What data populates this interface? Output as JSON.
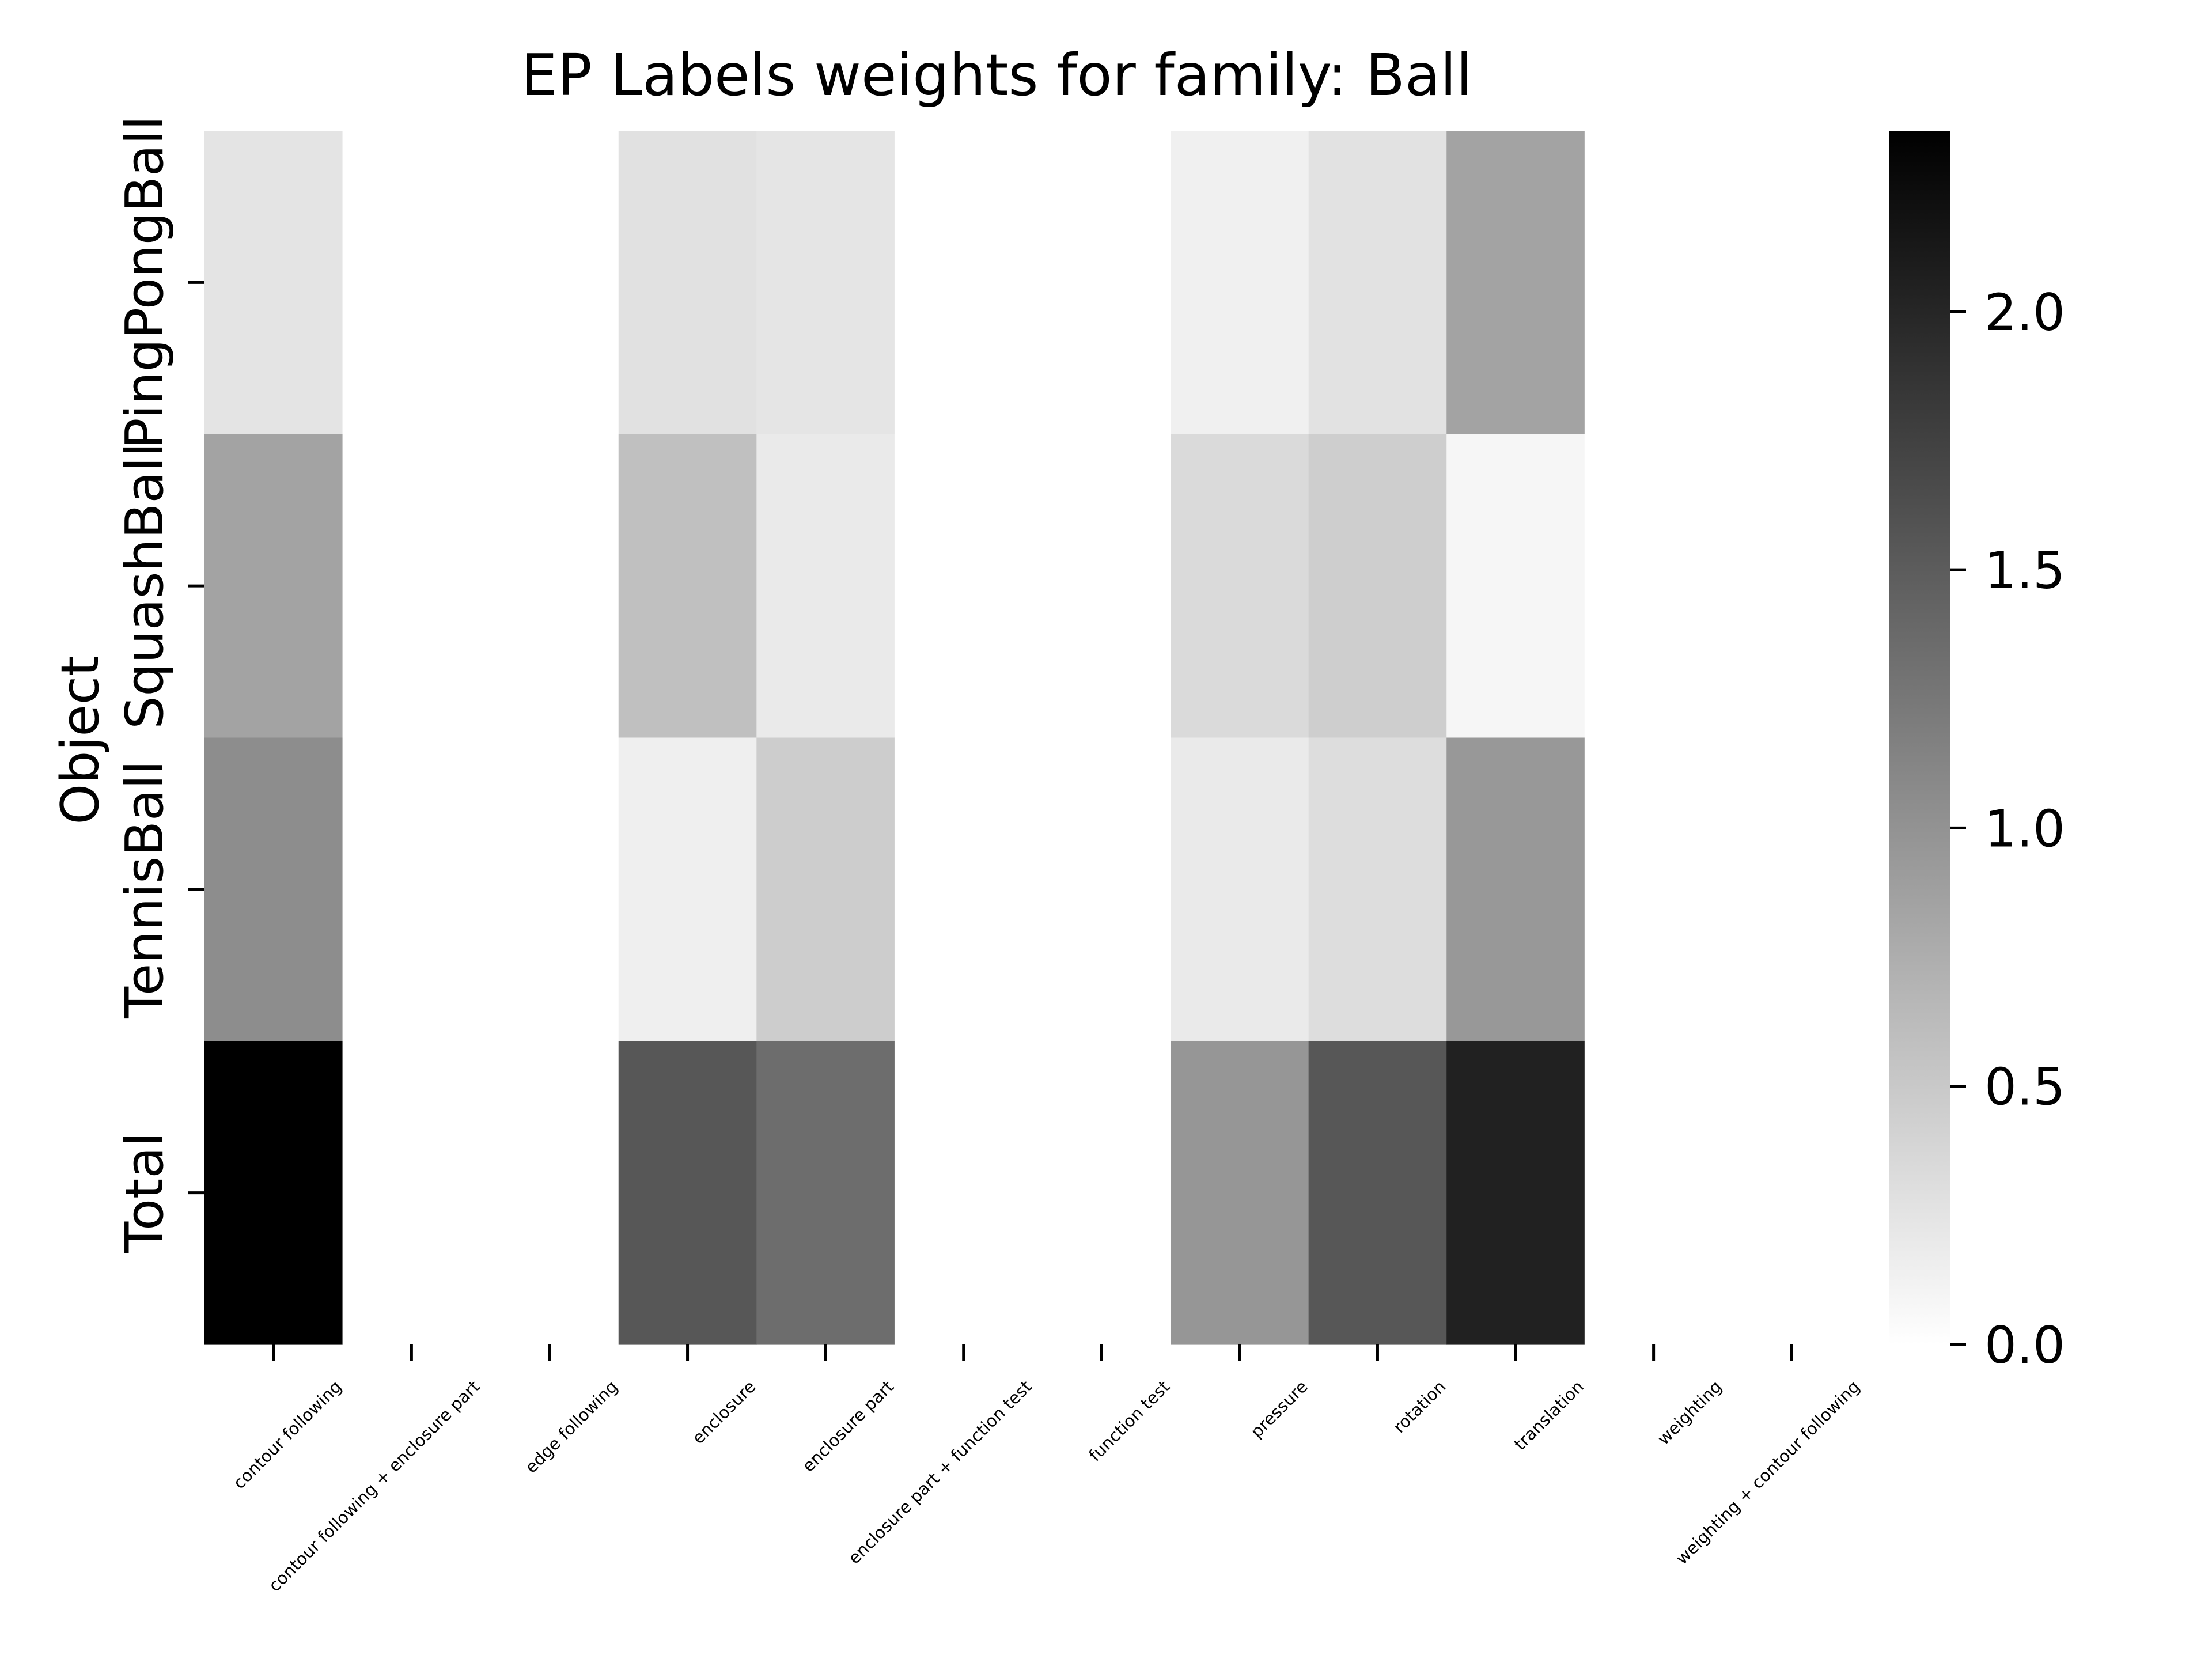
{
  "chart_data": {
    "type": "heatmap",
    "title": "EP Labels weights for family: Ball",
    "ylabel": "Object",
    "xlabel": "",
    "columns": [
      "contour following",
      "contour following + enclosure part",
      "edge following",
      "enclosure",
      "enclosure part",
      "enclosure part + function test",
      "function test",
      "pressure",
      "rotation",
      "translation",
      "weighting",
      "weighting + contour following"
    ],
    "rows": [
      "PingPongBall",
      "SquashBall",
      "TennisBall",
      "Total"
    ],
    "values": [
      [
        0.25,
        0,
        0,
        0.28,
        0.24,
        0,
        0,
        0.14,
        0.27,
        0.85,
        0,
        0
      ],
      [
        0.85,
        0,
        0,
        0.58,
        0.19,
        0,
        0,
        0.34,
        0.45,
        0.08,
        0,
        0
      ],
      [
        1.05,
        0,
        0,
        0.15,
        0.46,
        0,
        0,
        0.19,
        0.31,
        0.95,
        0,
        0
      ],
      [
        2.35,
        0,
        0,
        1.55,
        1.35,
        0,
        0,
        0.97,
        1.55,
        2.05,
        0,
        0
      ]
    ],
    "colorbar": {
      "min": 0.0,
      "max": 2.35,
      "ticks": [
        "0.0",
        "0.5",
        "1.0",
        "1.5",
        "2.0"
      ],
      "tick_values": [
        0.0,
        0.5,
        1.0,
        1.5,
        2.0
      ],
      "colormap": "greys",
      "color_low": "#ffffff",
      "color_high": "#000000"
    },
    "grid": false,
    "legend": "colorbar-right"
  }
}
